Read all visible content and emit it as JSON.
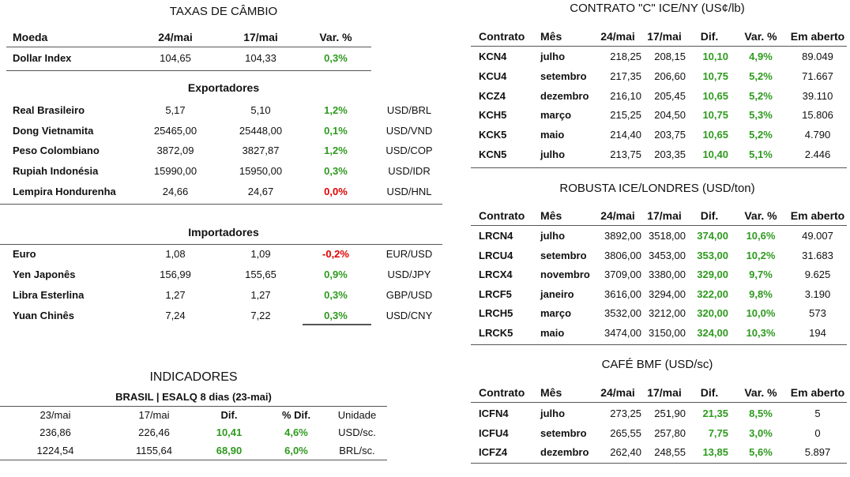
{
  "fx": {
    "title": "TAXAS DE CÂMBIO",
    "header": [
      "Moeda",
      "24/mai",
      "17/mai",
      "Var. %"
    ],
    "dollar": {
      "cells": [
        "Dollar Index",
        "104,65",
        "104,33",
        "0,3%"
      ],
      "color": "#2e9a1e"
    },
    "exporters": {
      "title": "Exportadores",
      "rows": [
        {
          "cells": [
            "Real Brasileiro",
            "5,17",
            "5,10",
            "1,2%",
            "USD/BRL"
          ],
          "color": "#2e9a1e"
        },
        {
          "cells": [
            "Dong Vietnamita",
            "25465,00",
            "25448,00",
            "0,1%",
            "USD/VND"
          ],
          "color": "#2e9a1e"
        },
        {
          "cells": [
            "Peso Colombiano",
            "3872,09",
            "3827,87",
            "1,2%",
            "USD/COP"
          ],
          "color": "#2e9a1e"
        },
        {
          "cells": [
            "Rupiah Indonésia",
            "15990,00",
            "15950,00",
            "0,3%",
            "USD/IDR"
          ],
          "color": "#2e9a1e"
        },
        {
          "cells": [
            "Lempira Hondurenha",
            "24,66",
            "24,67",
            "0,0%",
            "USD/HNL"
          ],
          "color": "#e00000"
        }
      ]
    },
    "importers": {
      "title": "Importadores",
      "rows": [
        {
          "cells": [
            "Euro",
            "1,08",
            "1,09",
            "-0,2%",
            "EUR/USD"
          ],
          "color": "#e00000"
        },
        {
          "cells": [
            "Yen Japonês",
            "156,99",
            "155,65",
            "0,9%",
            "USD/JPY"
          ],
          "color": "#2e9a1e"
        },
        {
          "cells": [
            "Libra Esterlina",
            "1,27",
            "1,27",
            "0,3%",
            "GBP/USD"
          ],
          "color": "#2e9a1e"
        },
        {
          "cells": [
            "Yuan Chinês",
            "7,24",
            "7,22",
            "0,3%",
            "USD/CNY"
          ],
          "color": "#2e9a1e"
        }
      ]
    }
  },
  "indicators": {
    "title": "INDICADORES",
    "subtitle": "BRASIL | ESALQ 8 dias (23-mai)",
    "header": [
      "23/mai",
      "17/mai",
      "Dif.",
      "% Dif.",
      "Unidade"
    ],
    "rows": [
      [
        "236,86",
        "226,46",
        "10,41",
        "4,6%",
        "USD/sc."
      ],
      [
        "1224,54",
        "1155,64",
        "68,90",
        "6,0%",
        "BRL/sc."
      ]
    ],
    "accent": "#2e9a1e"
  },
  "ny": {
    "title": "CONTRATO \"C\" ICE/NY (US¢/lb)",
    "header": [
      "Contrato",
      "Mês",
      "24/mai",
      "17/mai",
      "Dif.",
      "Var. %",
      "Em aberto"
    ],
    "rows": [
      [
        "KCN4",
        "julho",
        "218,25",
        "208,15",
        "10,10",
        "4,9%",
        "89.049"
      ],
      [
        "KCU4",
        "setembro",
        "217,35",
        "206,60",
        "10,75",
        "5,2%",
        "71.667"
      ],
      [
        "KCZ4",
        "dezembro",
        "216,10",
        "205,45",
        "10,65",
        "5,2%",
        "39.110"
      ],
      [
        "KCH5",
        "março",
        "215,25",
        "204,50",
        "10,75",
        "5,3%",
        "15.806"
      ],
      [
        "KCK5",
        "maio",
        "214,40",
        "203,75",
        "10,65",
        "5,2%",
        "4.790"
      ],
      [
        "KCN5",
        "julho",
        "213,75",
        "203,35",
        "10,40",
        "5,1%",
        "2.446"
      ]
    ],
    "accent": "#2e9a1e"
  },
  "london": {
    "title": "ROBUSTA ICE/LONDRES (USD/ton)",
    "header": [
      "Contrato",
      "Mês",
      "24/mai",
      "17/mai",
      "Dif.",
      "Var. %",
      "Em aberto"
    ],
    "rows": [
      [
        "LRCN4",
        "julho",
        "3892,00",
        "3518,00",
        "374,00",
        "10,6%",
        "49.007"
      ],
      [
        "LRCU4",
        "setembro",
        "3806,00",
        "3453,00",
        "353,00",
        "10,2%",
        "31.683"
      ],
      [
        "LRCX4",
        "novembro",
        "3709,00",
        "3380,00",
        "329,00",
        "9,7%",
        "9.625"
      ],
      [
        "LRCF5",
        "janeiro",
        "3616,00",
        "3294,00",
        "322,00",
        "9,8%",
        "3.190"
      ],
      [
        "LRCH5",
        "março",
        "3532,00",
        "3212,00",
        "320,00",
        "10,0%",
        "573"
      ],
      [
        "LRCK5",
        "maio",
        "3474,00",
        "3150,00",
        "324,00",
        "10,3%",
        "194"
      ]
    ],
    "accent": "#2e9a1e"
  },
  "bmf": {
    "title": "CAFÉ BMF (USD/sc)",
    "header": [
      "Contrato",
      "Mês",
      "24/mai",
      "17/mai",
      "Dif.",
      "Var. %",
      "Em aberto"
    ],
    "rows": [
      [
        "ICFN4",
        "julho",
        "273,25",
        "251,90",
        "21,35",
        "8,5%",
        "5"
      ],
      [
        "ICFU4",
        "setembro",
        "265,55",
        "257,80",
        "7,75",
        "3,0%",
        "0"
      ],
      [
        "ICFZ4",
        "dezembro",
        "262,40",
        "248,55",
        "13,85",
        "5,6%",
        "5.897"
      ]
    ],
    "accent": "#2e9a1e"
  }
}
